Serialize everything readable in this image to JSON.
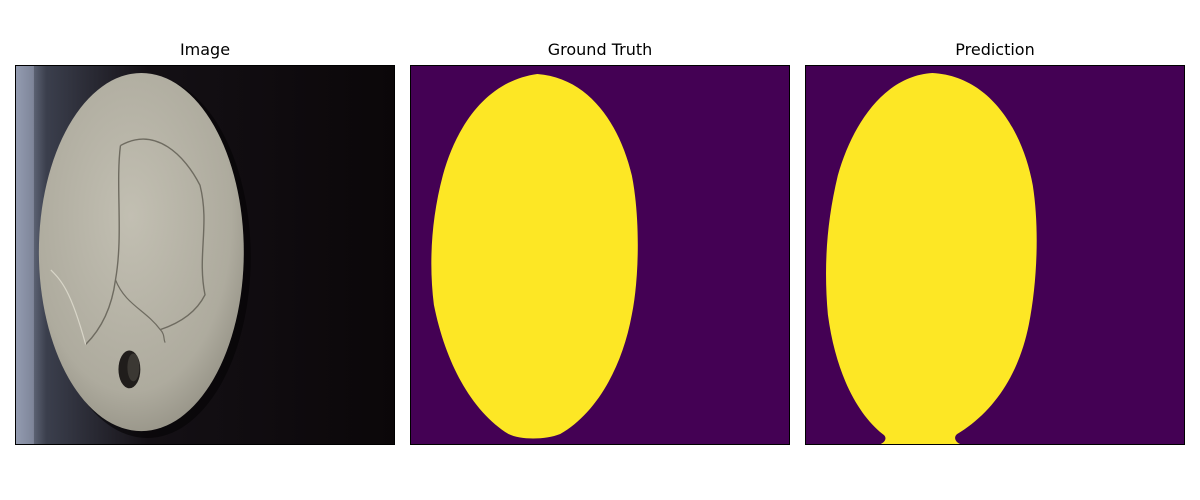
{
  "panels": {
    "image": {
      "title": "Image"
    },
    "ground_truth": {
      "title": "Ground Truth"
    },
    "prediction": {
      "title": "Prediction"
    }
  },
  "colors": {
    "background_class": "#440154",
    "foreground_class": "#fde725",
    "photo_background": "#0b0709",
    "disc": "#b3b0a3"
  }
}
